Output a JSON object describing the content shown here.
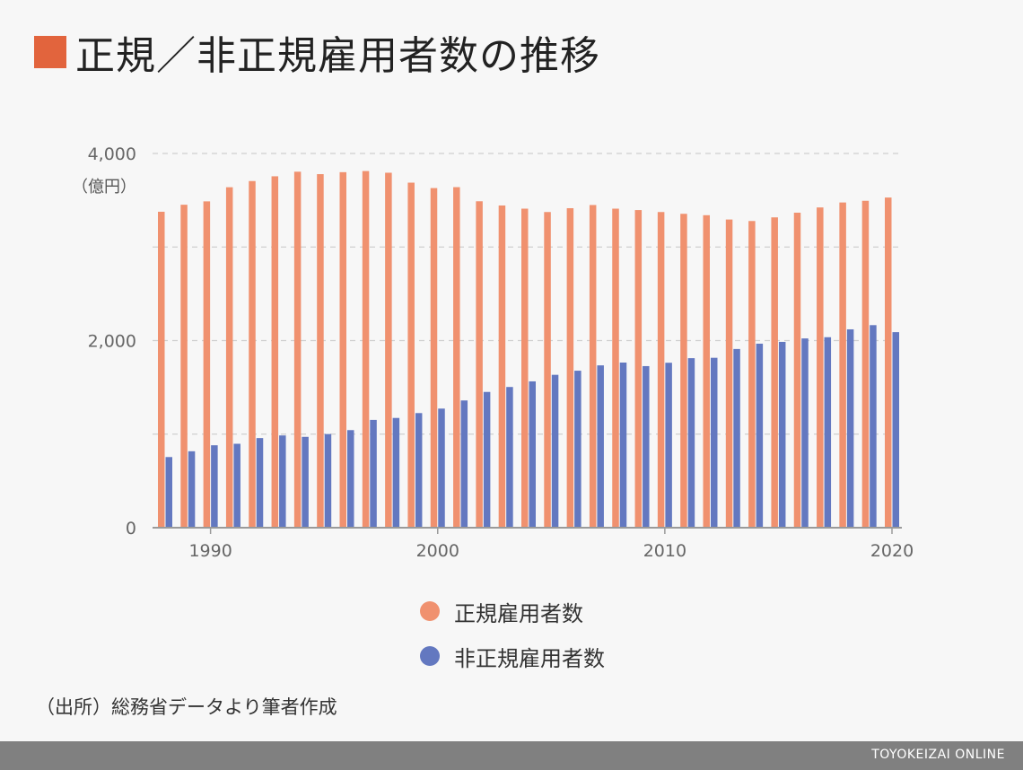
{
  "header": {
    "title": "正規／非正規雇用者数の推移",
    "title_square_color": "#e2643d"
  },
  "chart_data": {
    "type": "bar",
    "years": [
      1988,
      1989,
      1990,
      1991,
      1992,
      1993,
      1994,
      1995,
      1996,
      1997,
      1998,
      1999,
      2000,
      2001,
      2002,
      2003,
      2004,
      2005,
      2006,
      2007,
      2008,
      2009,
      2010,
      2011,
      2012,
      2013,
      2014,
      2015,
      2016,
      2017,
      2018,
      2019,
      2020
    ],
    "series": [
      {
        "name": "正規雇用者数",
        "color": "#f0916f",
        "values": [
          3377,
          3452,
          3488,
          3639,
          3705,
          3756,
          3805,
          3779,
          3800,
          3812,
          3794,
          3688,
          3630,
          3640,
          3489,
          3444,
          3410,
          3374,
          3415,
          3449,
          3410,
          3395,
          3374,
          3355,
          3340,
          3294,
          3278,
          3317,
          3367,
          3423,
          3476,
          3494,
          3529
        ]
      },
      {
        "name": "非正規雇用者数",
        "color": "#6378c0",
        "values": [
          755,
          817,
          881,
          897,
          958,
          986,
          971,
          1001,
          1043,
          1152,
          1173,
          1225,
          1273,
          1360,
          1451,
          1504,
          1564,
          1634,
          1678,
          1735,
          1765,
          1727,
          1763,
          1812,
          1816,
          1910,
          1967,
          1986,
          2023,
          2036,
          2120,
          2165,
          2090
        ]
      }
    ],
    "ylim": [
      0,
      4000
    ],
    "yticks": [
      {
        "value": 0,
        "label": "0"
      },
      {
        "value": 2000,
        "label": "2,000"
      },
      {
        "value": 4000,
        "label": "4,000"
      }
    ],
    "gridlines": [
      1000,
      2000,
      3000,
      4000
    ],
    "xticks": [
      {
        "value": 1990,
        "label": "1990"
      },
      {
        "value": 2000,
        "label": "2000"
      },
      {
        "value": 2010,
        "label": "2010"
      },
      {
        "value": 2020,
        "label": "2020"
      }
    ],
    "ylabel": "（億円）",
    "legend_position": "bottom-center"
  },
  "legend": {
    "items": [
      {
        "label": "正規雇用者数",
        "color": "#f0916f"
      },
      {
        "label": "非正規雇用者数",
        "color": "#6378c0"
      }
    ]
  },
  "footer": {
    "source": "（出所）総務省データより筆者作成",
    "brand": "TOYOKEIZAI ONLINE"
  }
}
